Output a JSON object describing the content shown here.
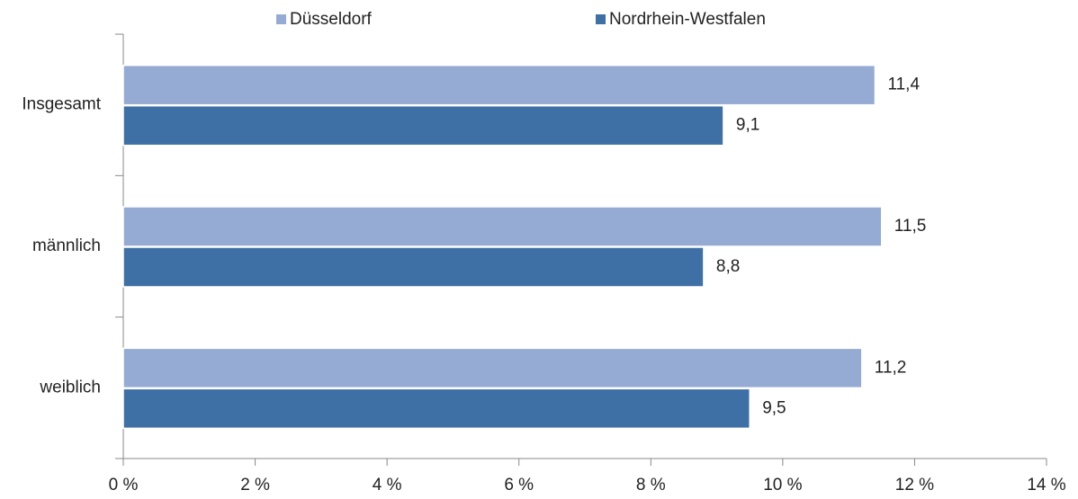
{
  "chart_data": {
    "type": "hbar",
    "categories": [
      "Insgesamt",
      "männlich",
      "weiblich"
    ],
    "series": [
      {
        "name": "Düsseldorf",
        "color": "#95abd3",
        "values": [
          11.4,
          11.5,
          11.2
        ],
        "value_labels": [
          "11,4",
          "11,5",
          "11,2"
        ]
      },
      {
        "name": "Nordrhein-Westfalen",
        "color": "#3e6fa5",
        "values": [
          9.1,
          8.8,
          9.5
        ],
        "value_labels": [
          "9,1",
          "8,8",
          "9,5"
        ]
      }
    ],
    "xlim": [
      0,
      14
    ],
    "xticks": [
      {
        "value": 0,
        "label": "0 %"
      },
      {
        "value": 2,
        "label": "2 %"
      },
      {
        "value": 4,
        "label": "4 %"
      },
      {
        "value": 6,
        "label": "6 %"
      },
      {
        "value": 8,
        "label": "8 %"
      },
      {
        "value": 10,
        "label": "10 %"
      },
      {
        "value": 12,
        "label": "12 %"
      },
      {
        "value": 14,
        "label": "14 %"
      }
    ],
    "legend": "top"
  }
}
